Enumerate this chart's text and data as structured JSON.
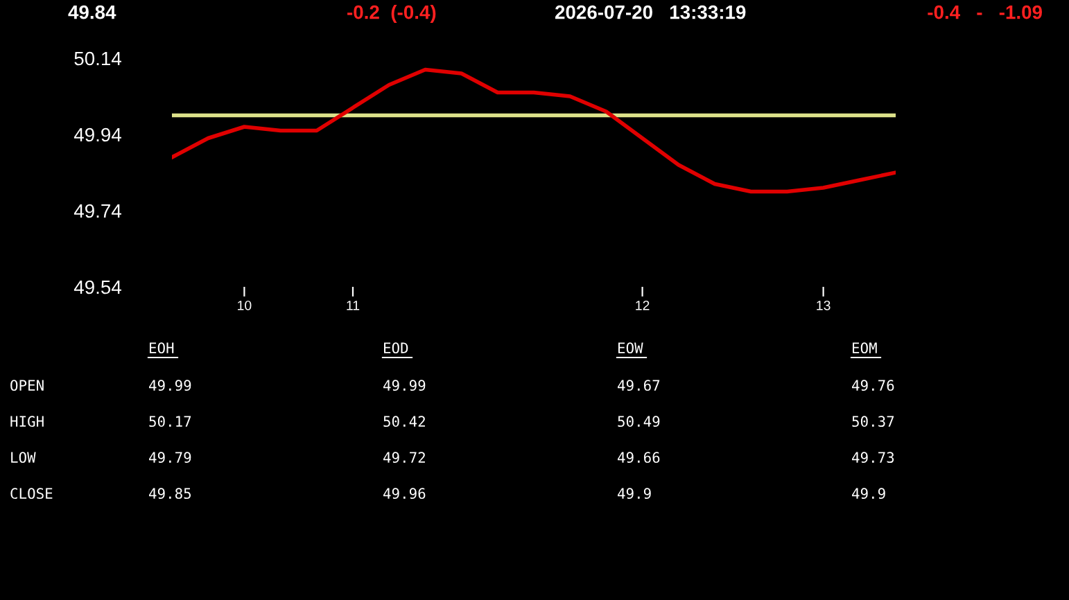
{
  "chart_data": {
    "type": "line",
    "title": "49.84",
    "categories": [
      null,
      null,
      "10",
      null,
      null,
      "11",
      null,
      null,
      null,
      null,
      null,
      null,
      null,
      "12",
      null,
      null,
      null,
      null,
      "13",
      null,
      null
    ],
    "series": [
      {
        "color": "#e00000",
        "values": [
          49.88,
          49.93,
          49.96,
          49.95,
          49.95,
          50.01,
          50.07,
          50.11,
          50.1,
          50.05,
          50.05,
          50.04,
          50.0,
          49.93,
          49.86,
          49.81,
          49.79,
          49.79,
          49.8,
          49.82,
          49.84
        ]
      }
    ],
    "ylim": [
      49.54,
      50.14
    ],
    "yticks": [
      49.54,
      49.74,
      49.94,
      50.14
    ],
    "ref_lines": [
      {
        "axis": "y",
        "value": 49.99,
        "color": "#dde28a"
      }
    ],
    "grid": false,
    "marker": "none",
    "line_style": "solid",
    "annotations": [
      "-0.2  (-0.4)",
      "2026-07-20   13:33:19",
      "-0.4   -   -1.09",
      "EOH",
      "EOD",
      "EOW",
      "EOM",
      "OPEN",
      "49.99",
      "49.99",
      "49.67",
      "49.76",
      "HIGH",
      "50.17",
      "50.42",
      "50.49",
      "50.37",
      "LOW",
      "49.79",
      "49.72",
      "49.66",
      "49.73",
      "CLOSE",
      "49.85",
      "49.96",
      "49.9",
      "49.9"
    ]
  }
}
